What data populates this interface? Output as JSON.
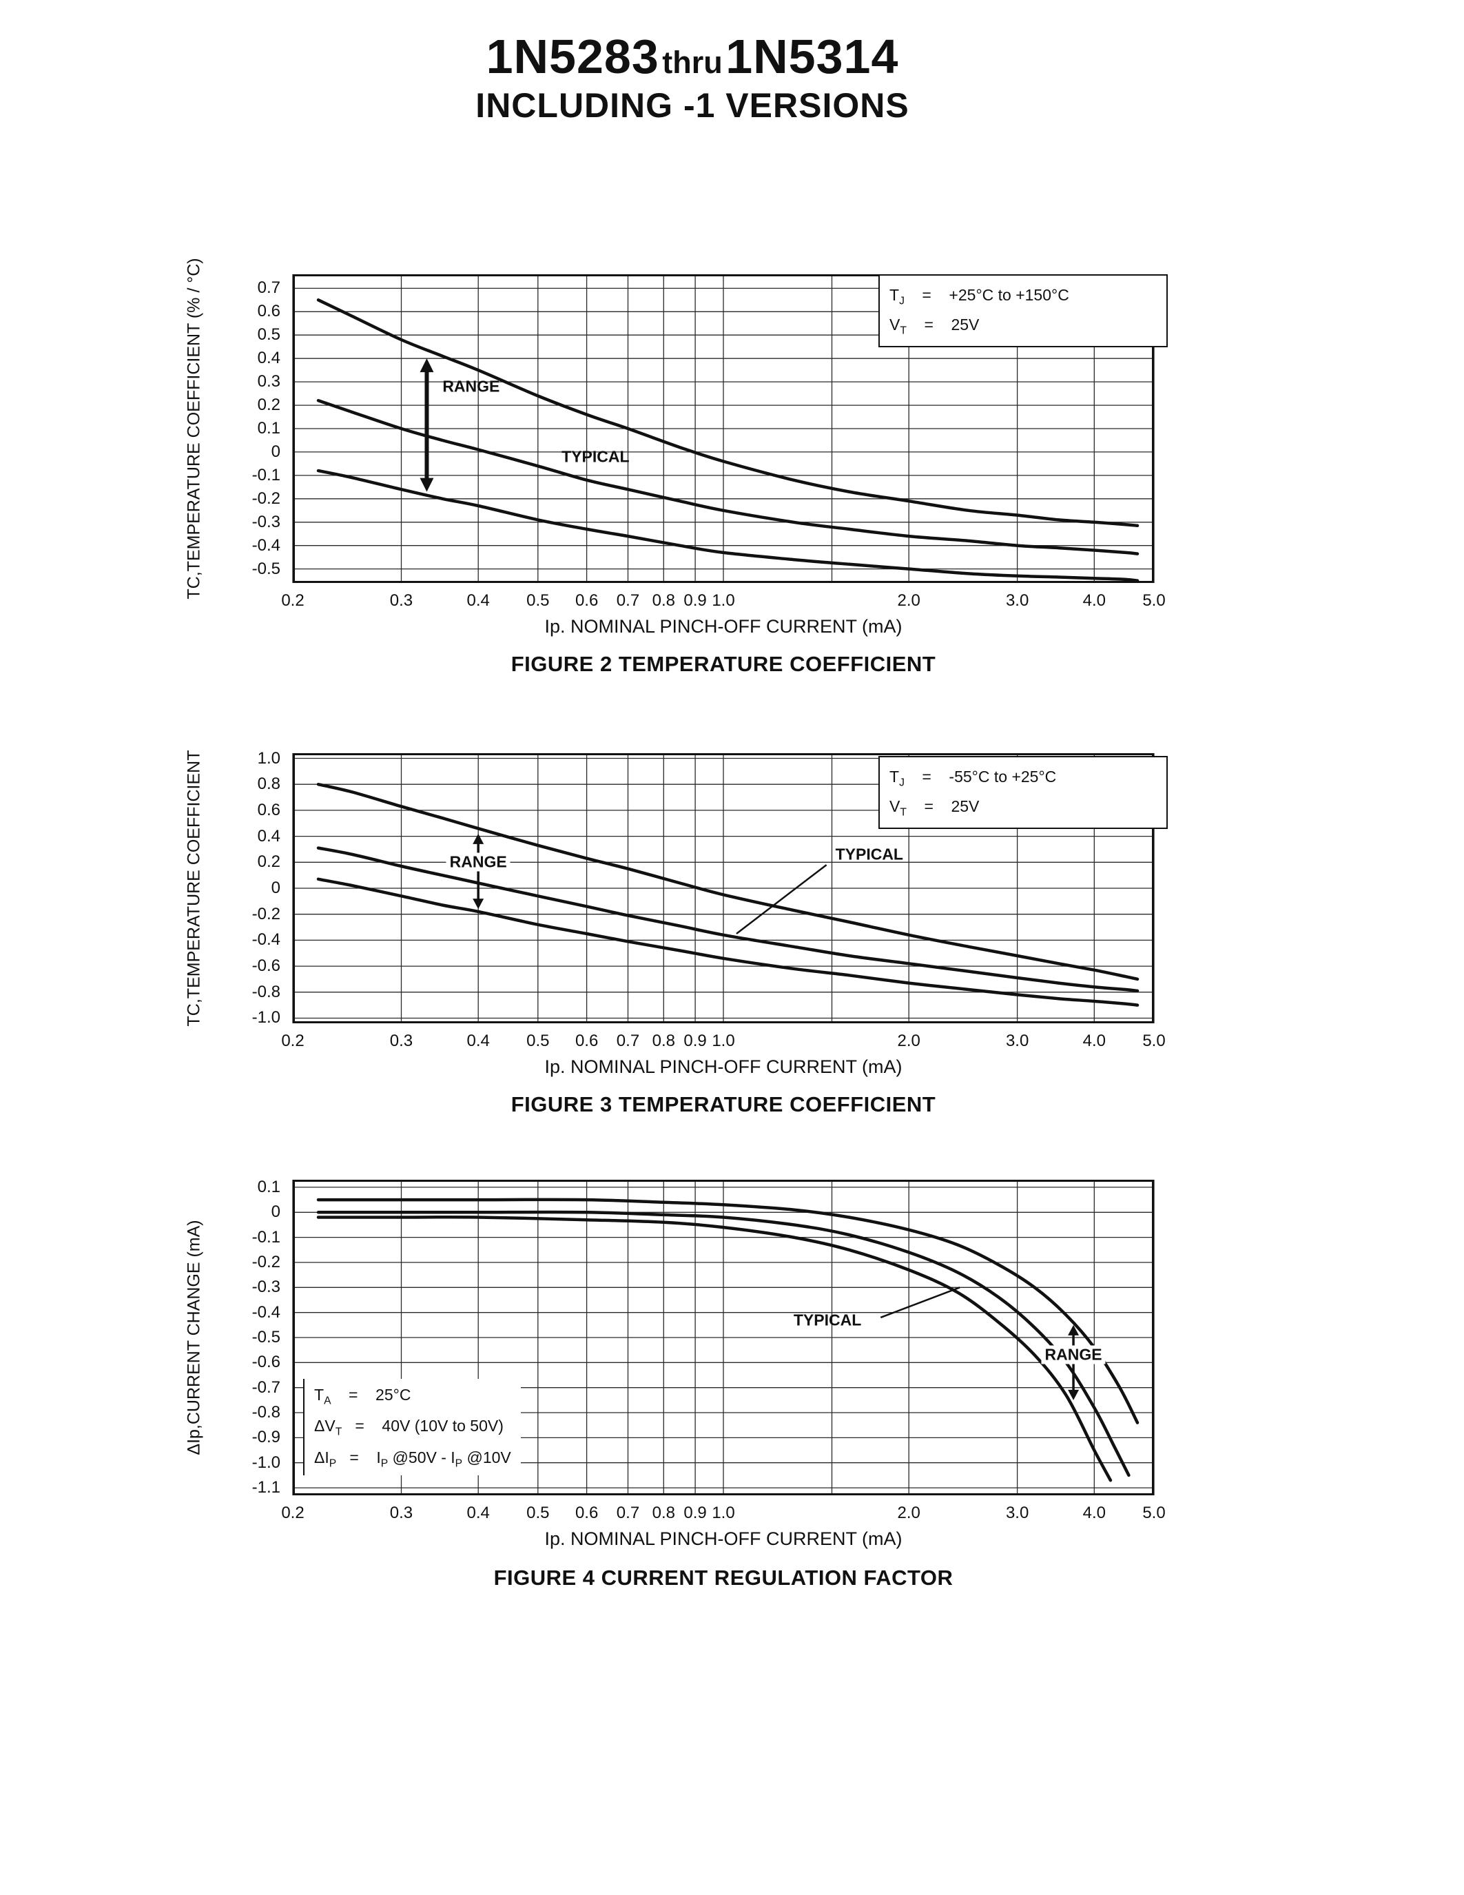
{
  "header": {
    "title_start": "1N5283",
    "title_mid": "thru",
    "title_end": "1N5314",
    "subtitle": "INCLUDING -1 VERSIONS"
  },
  "chart_data": [
    {
      "type": "line",
      "title": "FIGURE 2 TEMPERATURE COEFFICIENT",
      "xlabel": "Ip. NOMINAL PINCH-OFF CURRENT (mA)",
      "ylabel": "TC,TEMPERATURE COEFFICIENT (% / °C)",
      "x_scale": "log",
      "xlim": [
        0.2,
        5.0
      ],
      "x_ticks": [
        0.2,
        0.3,
        0.4,
        0.5,
        0.6,
        0.7,
        0.8,
        0.9,
        1.0,
        2.0,
        3.0,
        4.0,
        5.0
      ],
      "x_grid_extra": [
        1.5
      ],
      "ylim": [
        0.76,
        -0.56
      ],
      "y_ticks": [
        0.7,
        0.6,
        0.5,
        0.4,
        0.3,
        0.2,
        0.1,
        0,
        -0.1,
        -0.2,
        -0.3,
        -0.4,
        -0.5
      ],
      "grid": true,
      "legend_position": "top-right",
      "conditions": [
        "T~J~    =    +25°C to +150°C",
        "V~T~    =    25V"
      ],
      "conditions_box": {
        "fx": 0.68,
        "fy": 0.0,
        "fw": 0.31,
        "style": "bordered"
      },
      "series": [
        {
          "name": "range-upper",
          "x": [
            0.22,
            0.25,
            0.3,
            0.35,
            0.4,
            0.5,
            0.6,
            0.7,
            0.85,
            1.0,
            1.3,
            1.6,
            2.0,
            2.5,
            3.0,
            3.5,
            4.0,
            4.5,
            4.7
          ],
          "y": [
            0.65,
            0.58,
            0.48,
            0.41,
            0.35,
            0.24,
            0.16,
            0.1,
            0.02,
            -0.04,
            -0.12,
            -0.17,
            -0.21,
            -0.25,
            -0.27,
            -0.29,
            -0.3,
            -0.31,
            -0.315
          ]
        },
        {
          "name": "typical",
          "x": [
            0.22,
            0.25,
            0.3,
            0.35,
            0.4,
            0.5,
            0.6,
            0.7,
            0.85,
            1.0,
            1.3,
            1.6,
            2.0,
            2.5,
            3.0,
            3.5,
            4.0,
            4.5,
            4.7
          ],
          "y": [
            0.22,
            0.17,
            0.1,
            0.05,
            0.01,
            -0.06,
            -0.12,
            -0.16,
            -0.21,
            -0.25,
            -0.3,
            -0.33,
            -0.36,
            -0.38,
            -0.4,
            -0.41,
            -0.42,
            -0.43,
            -0.435
          ]
        },
        {
          "name": "range-lower",
          "x": [
            0.22,
            0.25,
            0.3,
            0.35,
            0.4,
            0.5,
            0.6,
            0.7,
            0.85,
            1.0,
            1.3,
            1.6,
            2.0,
            2.5,
            3.0,
            3.5,
            4.0,
            4.5,
            4.7
          ],
          "y": [
            -0.08,
            -0.11,
            -0.16,
            -0.2,
            -0.23,
            -0.29,
            -0.33,
            -0.36,
            -0.4,
            -0.43,
            -0.46,
            -0.48,
            -0.5,
            -0.52,
            -0.53,
            -0.535,
            -0.54,
            -0.545,
            -0.55
          ]
        }
      ],
      "annotations": [
        {
          "type": "varrow",
          "x": 0.33,
          "y1": 0.4,
          "y2": -0.17,
          "bold": true
        },
        {
          "type": "label",
          "name": "range-label",
          "text": "RANGE",
          "x": 0.35,
          "y": 0.28,
          "anchor": "start"
        },
        {
          "type": "label",
          "name": "typical-label",
          "text": "TYPICAL",
          "x": 0.62,
          "y": -0.02
        }
      ]
    },
    {
      "type": "line",
      "title": "FIGURE 3 TEMPERATURE COEFFICIENT",
      "xlabel": "Ip. NOMINAL PINCH-OFF CURRENT (mA)",
      "ylabel": "TC,TEMPERATURE COEFFICIENT",
      "x_scale": "log",
      "xlim": [
        0.2,
        5.0
      ],
      "x_ticks": [
        0.2,
        0.3,
        0.4,
        0.5,
        0.6,
        0.7,
        0.8,
        0.9,
        1.0,
        2.0,
        3.0,
        4.0,
        5.0
      ],
      "x_grid_extra": [
        1.5
      ],
      "ylim": [
        1.04,
        -1.04
      ],
      "y_ticks": [
        1.0,
        0.8,
        0.6,
        0.4,
        0.2,
        0,
        -0.2,
        -0.4,
        -0.6,
        -0.8,
        -1.0
      ],
      "grid": true,
      "legend_position": "top-right",
      "conditions": [
        "T~J~    =    -55°C to +25°C",
        "V~T~    =    25V"
      ],
      "conditions_box": {
        "fx": 0.68,
        "fy": 0.01,
        "fw": 0.31,
        "style": "bordered"
      },
      "series": [
        {
          "name": "range-upper",
          "x": [
            0.22,
            0.25,
            0.3,
            0.35,
            0.4,
            0.5,
            0.6,
            0.7,
            0.85,
            1.0,
            1.3,
            1.6,
            2.0,
            2.5,
            3.0,
            3.5,
            4.0,
            4.5,
            4.7
          ],
          "y": [
            0.8,
            0.74,
            0.63,
            0.54,
            0.46,
            0.33,
            0.23,
            0.15,
            0.04,
            -0.05,
            -0.17,
            -0.26,
            -0.36,
            -0.45,
            -0.52,
            -0.58,
            -0.63,
            -0.68,
            -0.7
          ]
        },
        {
          "name": "typical",
          "x": [
            0.22,
            0.25,
            0.3,
            0.35,
            0.4,
            0.5,
            0.6,
            0.7,
            0.85,
            1.0,
            1.3,
            1.6,
            2.0,
            2.5,
            3.0,
            3.5,
            4.0,
            4.5,
            4.7
          ],
          "y": [
            0.31,
            0.26,
            0.17,
            0.1,
            0.04,
            -0.06,
            -0.14,
            -0.21,
            -0.29,
            -0.36,
            -0.45,
            -0.52,
            -0.58,
            -0.64,
            -0.69,
            -0.73,
            -0.76,
            -0.78,
            -0.79
          ]
        },
        {
          "name": "range-lower",
          "x": [
            0.22,
            0.25,
            0.3,
            0.35,
            0.4,
            0.5,
            0.6,
            0.7,
            0.85,
            1.0,
            1.3,
            1.6,
            2.0,
            2.5,
            3.0,
            3.5,
            4.0,
            4.5,
            4.7
          ],
          "y": [
            0.07,
            0.02,
            -0.06,
            -0.13,
            -0.18,
            -0.28,
            -0.35,
            -0.41,
            -0.48,
            -0.54,
            -0.62,
            -0.67,
            -0.73,
            -0.78,
            -0.82,
            -0.85,
            -0.87,
            -0.89,
            -0.9
          ]
        }
      ],
      "annotations": [
        {
          "type": "varrow",
          "x": 0.4,
          "y1": 0.42,
          "y2": -0.16,
          "bold": false
        },
        {
          "type": "label",
          "name": "range-label",
          "text": "RANGE",
          "x": 0.4,
          "y": 0.2,
          "bg": true
        },
        {
          "type": "leader",
          "x1": 1.47,
          "y1": 0.18,
          "x2": 1.05,
          "y2": -0.35
        },
        {
          "type": "label",
          "name": "typical-label",
          "text": "TYPICAL",
          "x": 1.52,
          "y": 0.26,
          "anchor": "start"
        }
      ]
    },
    {
      "type": "line",
      "title": "FIGURE 4 CURRENT REGULATION FACTOR",
      "xlabel": "Ip. NOMINAL PINCH-OFF CURRENT (mA)",
      "ylabel": "ΔIp,CURRENT CHANGE (mA)",
      "x_scale": "log",
      "xlim": [
        0.2,
        5.0
      ],
      "x_ticks": [
        0.2,
        0.3,
        0.4,
        0.5,
        0.6,
        0.7,
        0.8,
        0.9,
        1.0,
        2.0,
        3.0,
        4.0,
        5.0
      ],
      "x_grid_extra": [
        1.5
      ],
      "ylim": [
        0.13,
        -1.13
      ],
      "y_ticks": [
        0.1,
        0,
        -0.1,
        -0.2,
        -0.3,
        -0.4,
        -0.5,
        -0.6,
        -0.7,
        -0.8,
        -0.9,
        -1.0,
        -1.1
      ],
      "grid": true,
      "legend_position": "bottom-left",
      "conditions": [
        "T~A~    =    25°C",
        "ΔV~T~   =    40V (10V to 50V)",
        "ΔI~P~   =    I~P~ @50V - I~P~ @10V"
      ],
      "conditions_box": {
        "fx": 0.012,
        "fy": 0.63,
        "style": "leftline"
      },
      "series": [
        {
          "name": "range-upper",
          "x": [
            0.22,
            0.3,
            0.4,
            0.6,
            0.8,
            1.0,
            1.3,
            1.6,
            2.0,
            2.4,
            2.8,
            3.2,
            3.6,
            4.0,
            4.4,
            4.7
          ],
          "y": [
            0.05,
            0.05,
            0.05,
            0.05,
            0.04,
            0.03,
            0.01,
            -0.02,
            -0.07,
            -0.13,
            -0.21,
            -0.3,
            -0.41,
            -0.54,
            -0.7,
            -0.84
          ]
        },
        {
          "name": "typical",
          "x": [
            0.22,
            0.3,
            0.4,
            0.6,
            0.8,
            1.0,
            1.3,
            1.6,
            2.0,
            2.4,
            2.8,
            3.2,
            3.6,
            4.0,
            4.3,
            4.55
          ],
          "y": [
            0.0,
            0.0,
            0.0,
            0.0,
            -0.01,
            -0.02,
            -0.05,
            -0.09,
            -0.16,
            -0.24,
            -0.34,
            -0.46,
            -0.6,
            -0.78,
            -0.93,
            -1.05
          ]
        },
        {
          "name": "range-lower",
          "x": [
            0.22,
            0.3,
            0.4,
            0.6,
            0.8,
            1.0,
            1.3,
            1.6,
            2.0,
            2.4,
            2.8,
            3.2,
            3.6,
            4.0,
            4.25
          ],
          "y": [
            -0.02,
            -0.02,
            -0.02,
            -0.03,
            -0.04,
            -0.06,
            -0.1,
            -0.15,
            -0.23,
            -0.32,
            -0.44,
            -0.57,
            -0.73,
            -0.95,
            -1.07
          ]
        }
      ],
      "annotations": [
        {
          "type": "label",
          "name": "typical-label",
          "text": "TYPICAL",
          "x": 1.3,
          "y": -0.43,
          "anchor": "start"
        },
        {
          "type": "leader",
          "x1": 1.8,
          "y1": -0.42,
          "x2": 2.42,
          "y2": -0.3
        },
        {
          "type": "varrow",
          "x": 3.7,
          "y1": -0.45,
          "y2": -0.75,
          "bold": false
        },
        {
          "type": "label",
          "name": "range-label",
          "text": "RANGE",
          "x": 3.7,
          "y": -0.57,
          "bg": true
        }
      ]
    }
  ]
}
